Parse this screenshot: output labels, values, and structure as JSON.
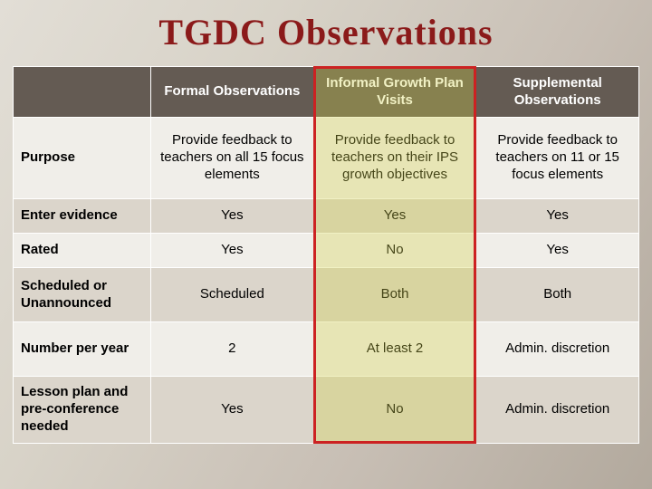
{
  "title": "TGDC Observations",
  "title_color": "#8b1a1a",
  "title_fontsize": 40,
  "background_gradient": [
    "#e2ded6",
    "#d8d3c8",
    "#c8bfb5",
    "#b2a99d"
  ],
  "header_bg": "#645b53",
  "header_fg": "#ffffff",
  "band_colors": {
    "a": "#f0eee9",
    "b": "#dbd5cb"
  },
  "border_color": "#ffffff",
  "cell_fontsize": 15,
  "highlight": {
    "column_index": 2,
    "border_color": "#cc2222",
    "fill_rgba": "rgba(212,210,70,0.32)"
  },
  "columns": [
    "",
    "Formal Observations",
    "Informal Growth Plan Visits",
    "Supplemental Observations"
  ],
  "rows": [
    {
      "label": "Purpose",
      "band": "a",
      "height_class": "r-purpose",
      "cells": [
        "Provide feedback to teachers on all 15 focus elements",
        "Provide feedback to teachers on their IPS growth objectives",
        "Provide feedback to teachers on 11 or 15 focus elements"
      ]
    },
    {
      "label": "Enter evidence",
      "band": "b",
      "height_class": "r-short",
      "cells": [
        "Yes",
        "Yes",
        "Yes"
      ]
    },
    {
      "label": "Rated",
      "band": "a",
      "height_class": "r-short",
      "cells": [
        "Yes",
        "No",
        "Yes"
      ]
    },
    {
      "label": "Scheduled or Unannounced",
      "band": "b",
      "height_class": "r-med",
      "cells": [
        "Scheduled",
        "Both",
        "Both"
      ]
    },
    {
      "label": "Number per year",
      "band": "a",
      "height_class": "r-med",
      "cells": [
        "2",
        "At least 2",
        "Admin. discretion"
      ]
    },
    {
      "label": "Lesson plan and pre-conference needed",
      "band": "b",
      "height_class": "r-tall",
      "cells": [
        "Yes",
        "No",
        "Admin. discretion"
      ]
    }
  ]
}
